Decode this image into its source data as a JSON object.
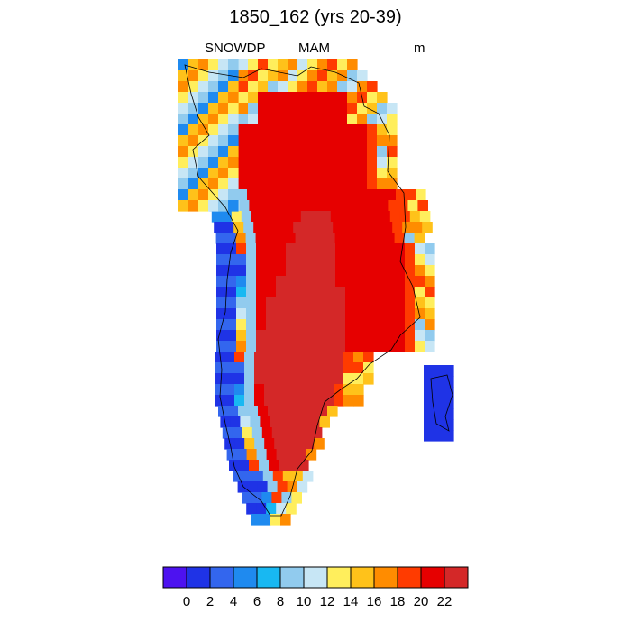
{
  "title": "1850_162 (yrs 20-39)",
  "left_label": "SNOWDP",
  "center_label": "MAM",
  "right_label": "m",
  "colorbar": {
    "colors": [
      "#4d12f0",
      "#1f33e6",
      "#3366ee",
      "#1f8aef",
      "#18b8f2",
      "#91cbee",
      "#c7e6f5",
      "#ffee5c",
      "#ffc21a",
      "#ff8c00",
      "#ff3b00",
      "#e60000",
      "#d42828"
    ],
    "tick_labels": [
      "0",
      "2",
      "4",
      "6",
      "8",
      "10",
      "12",
      "14",
      "16",
      "18",
      "20",
      "22"
    ]
  },
  "map": {
    "region": "Greenland",
    "variable_units": "m",
    "colors": {
      "core": "#d42828",
      "interior": "#e60000",
      "ring_red": "#ff3b00",
      "orange": "#ff8c00",
      "gold": "#ffc21a",
      "yellow": "#ffee5c",
      "pale": "#c7e6f5",
      "light": "#91cbee",
      "cyan": "#18b8f2",
      "azure": "#1f8aef",
      "blue": "#3366ee",
      "deep": "#1f33e6"
    }
  }
}
